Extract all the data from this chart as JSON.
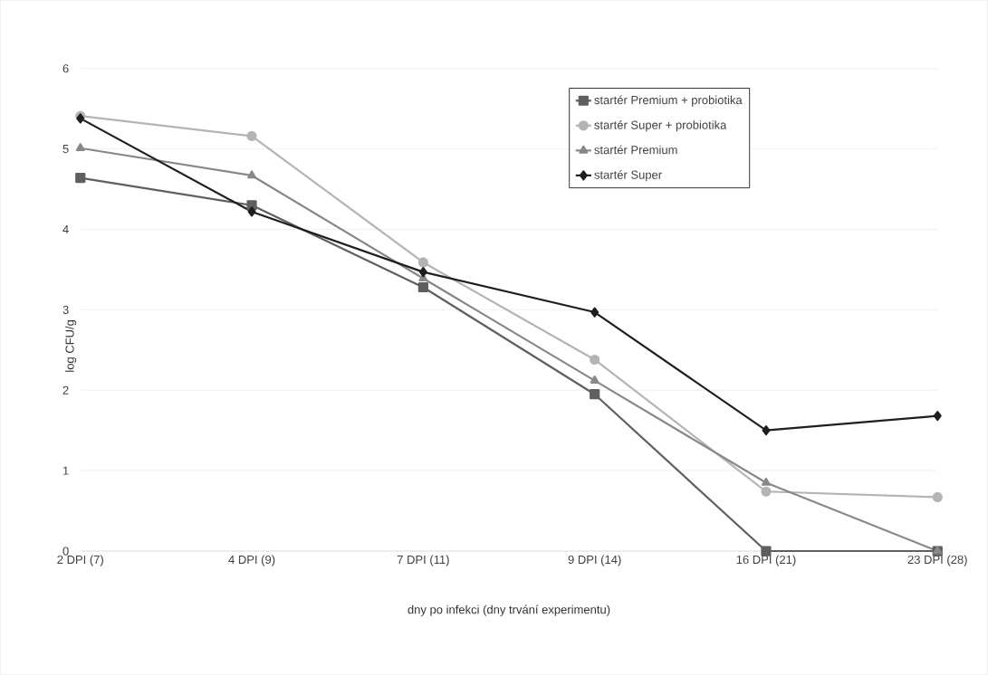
{
  "chart_data": {
    "type": "line",
    "xlabel": "dny po infekci (dny trvání experimentu)",
    "ylabel": "log CFU/g",
    "categories": [
      "2 DPI (7)",
      "4 DPI (9)",
      "7 DPI (11)",
      "9 DPI (14)",
      "16 DPI (21)",
      "23 DPI (28)"
    ],
    "series": [
      {
        "name": "startér Premium + probiotika",
        "color": "#5f5f5f",
        "marker": "square",
        "values": [
          4.64,
          4.3,
          3.28,
          1.95,
          0,
          0
        ]
      },
      {
        "name": "startér Super + probiotika",
        "color": "#b4b4b4",
        "marker": "circle",
        "values": [
          5.41,
          5.16,
          3.59,
          2.38,
          0.74,
          0.67
        ]
      },
      {
        "name": "startér Premium",
        "color": "#888888",
        "marker": "triangle",
        "values": [
          5.01,
          4.67,
          3.39,
          2.12,
          0.85,
          0
        ]
      },
      {
        "name": "startér Super",
        "color": "#1e1e1e",
        "marker": "diamond",
        "values": [
          5.38,
          4.22,
          3.47,
          2.97,
          1.5,
          1.68
        ]
      }
    ],
    "ylim": [
      0,
      6
    ],
    "yticks": [
      0,
      1,
      2,
      3,
      4,
      5,
      6
    ],
    "grid": "y",
    "legend": "top right",
    "line_style": "solid"
  }
}
